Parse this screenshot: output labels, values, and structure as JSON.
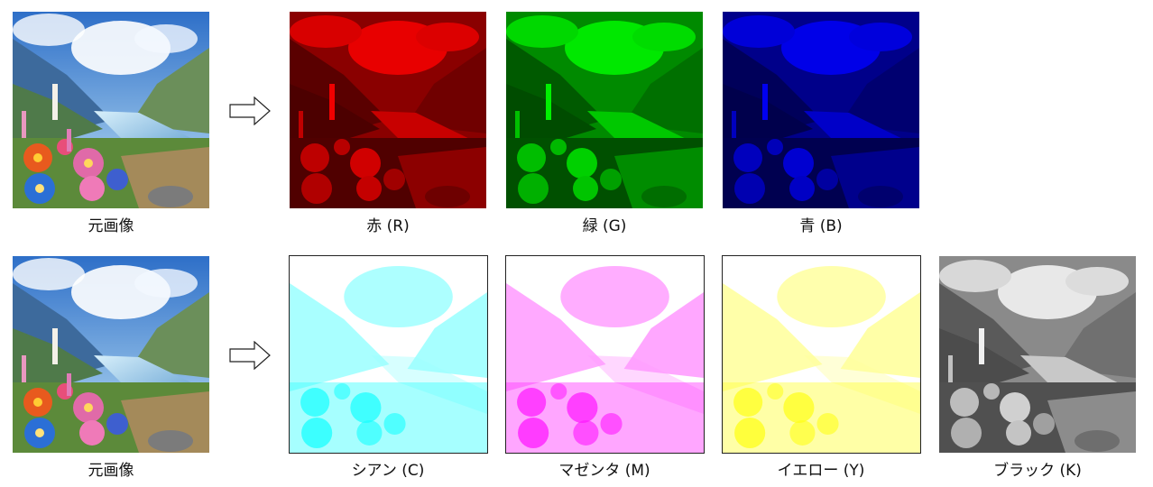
{
  "rows": [
    {
      "source_caption": "元画像",
      "channels": [
        {
          "caption": "赤 (R)",
          "color": "#ff0000"
        },
        {
          "caption": "緑 (G)",
          "color": "#00ff00"
        },
        {
          "caption": "青 (B)",
          "color": "#0000ff"
        }
      ]
    },
    {
      "source_caption": "元画像",
      "channels": [
        {
          "caption": "シアン (C)",
          "color": "#00ffff"
        },
        {
          "caption": "マゼンタ (M)",
          "color": "#ff00ff"
        },
        {
          "caption": "イエロー (Y)",
          "color": "#ffff00"
        },
        {
          "caption": "ブラック (K)",
          "color": "#000000"
        }
      ]
    }
  ],
  "icons": {
    "arrow": "right-arrow-icon"
  }
}
